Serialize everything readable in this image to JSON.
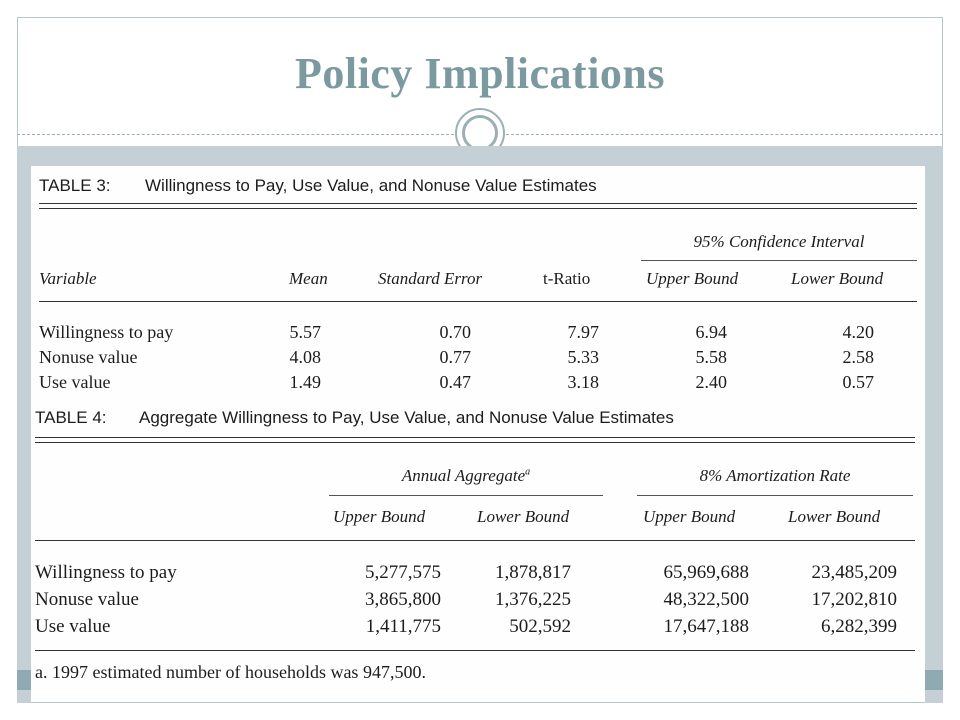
{
  "slide": {
    "title": "Policy Implications"
  },
  "table3": {
    "caption_label": "TABLE 3:",
    "caption_text": "Willingness to Pay, Use Value, and Nonuse Value Estimates",
    "group_header": "95% Confidence Interval",
    "columns": [
      "Variable",
      "Mean",
      "Standard Error",
      "t-Ratio",
      "Upper Bound",
      "Lower Bound"
    ],
    "rows": [
      [
        "Willingness to pay",
        "5.57",
        "0.70",
        "7.97",
        "6.94",
        "4.20"
      ],
      [
        "Nonuse value",
        "4.08",
        "0.77",
        "5.33",
        "5.58",
        "2.58"
      ],
      [
        "Use value",
        "1.49",
        "0.47",
        "3.18",
        "2.40",
        "0.57"
      ]
    ]
  },
  "table4": {
    "caption_label": "TABLE 4:",
    "caption_text": "Aggregate Willingness to Pay, Use Value, and Nonuse Value Estimates",
    "group_headers": [
      "Annual Aggregate",
      "8% Amortization Rate"
    ],
    "group_header_footnote_mark": "a",
    "columns": [
      "Upper Bound",
      "Lower Bound",
      "Upper Bound",
      "Lower Bound"
    ],
    "rows": [
      [
        "Willingness to pay",
        "5,277,575",
        "1,878,817",
        "65,969,688",
        "23,485,209"
      ],
      [
        "Nonuse value",
        "3,865,800",
        "1,376,225",
        "48,322,500",
        "17,202,810"
      ],
      [
        "Use value",
        "1,411,775",
        "502,592",
        "17,647,188",
        "6,282,399"
      ]
    ],
    "footnote": "a.  1997 estimated number of households was 947,500."
  },
  "colors": {
    "title": "#7a9aa0",
    "band": "#c4d0d5",
    "band_dark": "#8faab2"
  }
}
